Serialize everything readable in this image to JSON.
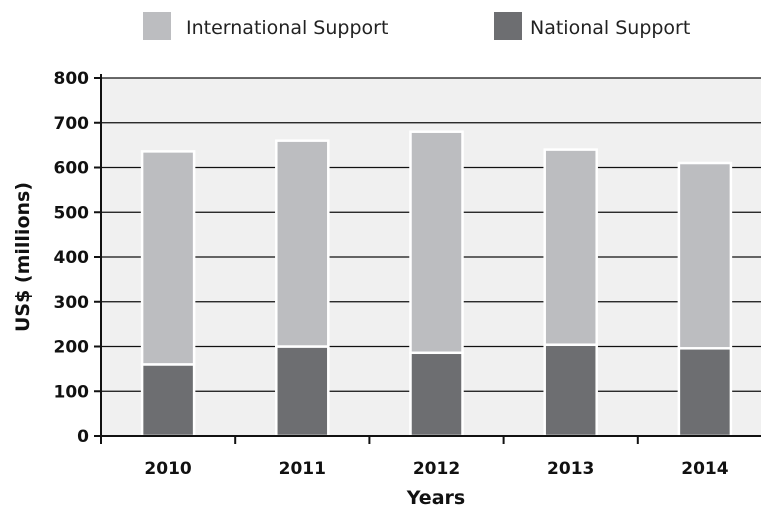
{
  "chart_data": {
    "type": "bar",
    "stacked": true,
    "categories": [
      "2010",
      "2011",
      "2012",
      "2013",
      "2014"
    ],
    "series": [
      {
        "name": "National Support",
        "values": [
          160,
          200,
          186,
          204,
          196
        ],
        "color": "#6d6e71"
      },
      {
        "name": "International Support",
        "values": [
          476,
          460,
          494,
          436,
          414
        ],
        "color": "#bcbdc0"
      }
    ],
    "legend_order": [
      "International Support",
      "National Support"
    ],
    "title": "",
    "xlabel": "Years",
    "ylabel": "US$ (millions)",
    "ylim": [
      0,
      800
    ],
    "yticks": [
      0,
      100,
      200,
      300,
      400,
      500,
      600,
      700,
      800
    ],
    "grid": true,
    "legend_position": "top",
    "plot_background": "#f0f0f0"
  }
}
